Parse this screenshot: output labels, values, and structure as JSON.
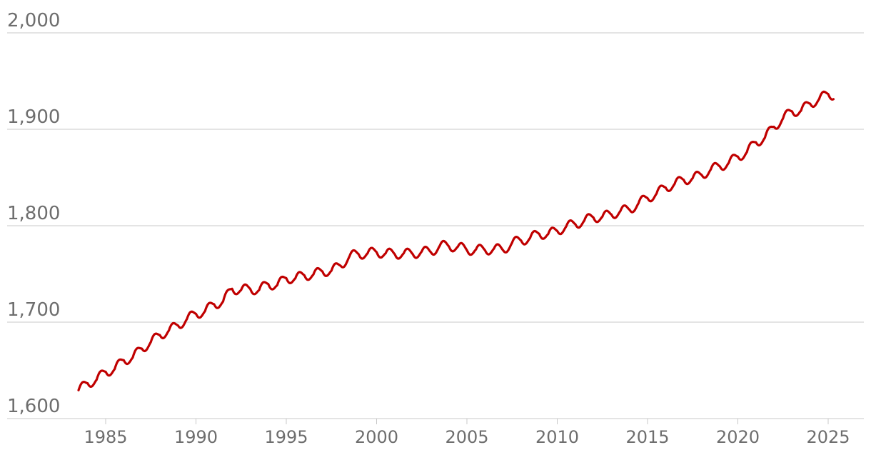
{
  "chart_data": {
    "type": "line",
    "title": "",
    "xlabel": "",
    "ylabel": "",
    "xlim": [
      1983,
      2027
    ],
    "ylim": [
      1600,
      2000
    ],
    "yticks": [
      1600,
      1700,
      1800,
      1900,
      2000
    ],
    "ytick_labels": [
      "1,600",
      "1,700",
      "1,800",
      "1,900",
      "2,000"
    ],
    "xticks": [
      1985,
      1990,
      1995,
      2000,
      2005,
      2010,
      2015,
      2020,
      2025
    ],
    "xtick_labels": [
      "1985",
      "1990",
      "1995",
      "2000",
      "2005",
      "2010",
      "2015",
      "2020",
      "2025"
    ],
    "grid": true,
    "legend": "none",
    "series": [
      {
        "color": "#c00000",
        "x": [
          1983.5,
          1984.0,
          1984.5,
          1985.0,
          1985.5,
          1986.0,
          1986.5,
          1987.0,
          1987.5,
          1988.0,
          1988.5,
          1989.0,
          1989.5,
          1990.0,
          1990.5,
          1991.0,
          1991.5,
          1992.0,
          1992.5,
          1993.0,
          1993.5,
          1994.0,
          1994.5,
          1995.0,
          1995.5,
          1996.0,
          1996.5,
          1997.0,
          1997.5,
          1998.0,
          1998.5,
          1999.0,
          1999.5,
          2000.0,
          2000.5,
          2001.0,
          2001.5,
          2002.0,
          2002.5,
          2003.0,
          2003.5,
          2004.0,
          2004.5,
          2005.0,
          2005.5,
          2006.0,
          2006.5,
          2007.0,
          2007.5,
          2008.0,
          2008.5,
          2009.0,
          2009.5,
          2010.0,
          2010.5,
          2011.0,
          2011.5,
          2012.0,
          2012.5,
          2013.0,
          2013.5,
          2014.0,
          2014.5,
          2015.0,
          2015.5,
          2016.0,
          2016.5,
          2017.0,
          2017.5,
          2018.0,
          2018.5,
          2019.0,
          2019.5,
          2020.0,
          2020.5,
          2021.0,
          2021.5,
          2022.0,
          2022.5,
          2023.0,
          2023.5,
          2024.0,
          2024.5,
          2025.0,
          2025.3
        ],
        "values": [
          1626,
          1640,
          1637,
          1652,
          1648,
          1664,
          1660,
          1676,
          1676,
          1690,
          1688,
          1700,
          1700,
          1712,
          1708,
          1722,
          1718,
          1738,
          1730,
          1738,
          1730,
          1743,
          1735,
          1749,
          1742,
          1752,
          1746,
          1756,
          1750,
          1762,
          1765,
          1774,
          1768,
          1776,
          1768,
          1774,
          1768,
          1774,
          1770,
          1776,
          1776,
          1782,
          1775,
          1778,
          1772,
          1778,
          1773,
          1778,
          1779,
          1788,
          1784,
          1795,
          1788,
          1798,
          1796,
          1805,
          1802,
          1812,
          1806,
          1815,
          1812,
          1820,
          1820,
          1832,
          1830,
          1843,
          1840,
          1851,
          1846,
          1856,
          1855,
          1865,
          1862,
          1875,
          1873,
          1890,
          1888,
          1906,
          1908,
          1922,
          1916,
          1930,
          1928,
          1940,
          1935
        ]
      }
    ]
  }
}
